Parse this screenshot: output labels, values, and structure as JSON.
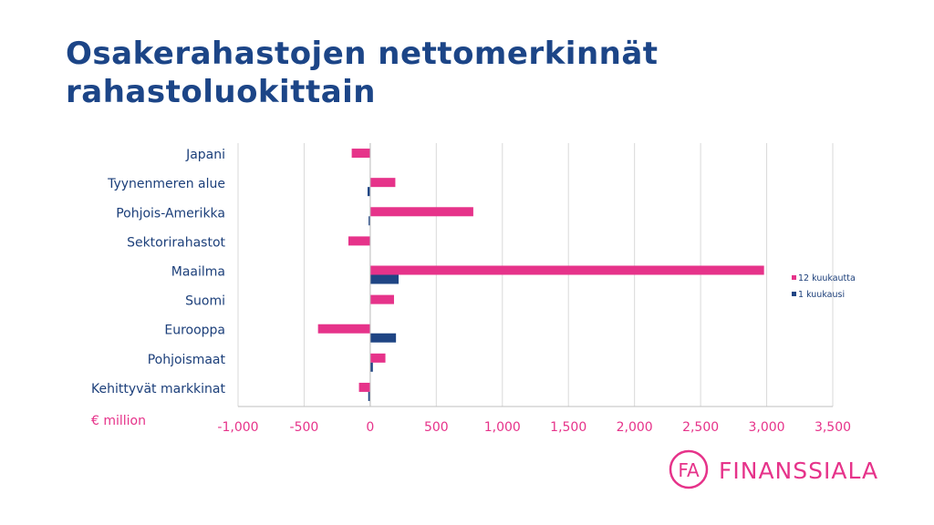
{
  "title_line1": "Osakerahastojen nettomerkinnät",
  "title_line2": "rahastoluokittain",
  "unit_label": "€ million",
  "logo": {
    "mark": "FA",
    "text": "FINANSSIALA",
    "color": "#e6338a"
  },
  "colors": {
    "title": "#1c4587",
    "series_12m": "#e6338a",
    "series_1m": "#1f4584",
    "grid": "#d9d9d9",
    "axis": "#bfbfbf"
  },
  "chart_data": {
    "type": "bar",
    "orientation": "horizontal",
    "categories": [
      "Japani",
      "Tyynenmeren alue",
      "Pohjois-Amerikka",
      "Sektorirahastot",
      "Maailma",
      "Suomi",
      "Eurooppa",
      "Pohjoismaat",
      "Kehittyvät markkinat"
    ],
    "series": [
      {
        "name": "12 kuukautta",
        "color": "#e6338a",
        "values": [
          -140,
          190,
          780,
          -165,
          2980,
          180,
          -395,
          115,
          -85
        ]
      },
      {
        "name": "1 kuukausi",
        "color": "#1f4584",
        "values": [
          0,
          -20,
          -12,
          0,
          215,
          0,
          195,
          20,
          -15
        ]
      }
    ],
    "xlim": [
      -1000,
      3500
    ],
    "xticks": [
      -1000,
      -500,
      0,
      500,
      1000,
      1500,
      2000,
      2500,
      3000,
      3500
    ],
    "xtick_labels": [
      "-1,000",
      "-500",
      "0",
      "500",
      "1,000",
      "1,500",
      "2,000",
      "2,500",
      "3,000",
      "3,500"
    ],
    "grid": true,
    "legend": "right"
  }
}
